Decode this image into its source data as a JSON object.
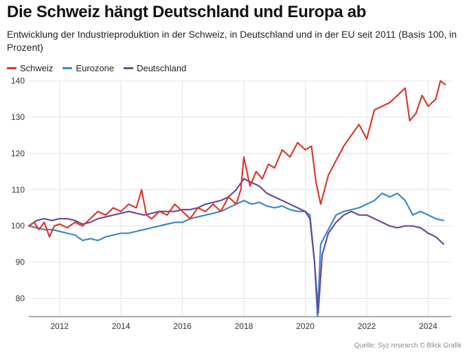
{
  "title": "Die Schweiz hängt Deutschland und Europa ab",
  "subtitle": "Entwicklung der Industrieproduktion in der Schweiz, in Deutschland und in der EU seit 2011 (Basis 100, in Prozent)",
  "source": "Quelle: Syz research © Blick Grafik",
  "chart_data": {
    "type": "line",
    "title": "Die Schweiz hängt Deutschland und Europa ab",
    "xlabel": "",
    "ylabel": "",
    "xlim": [
      2011,
      2024.75
    ],
    "ylim": [
      75,
      140
    ],
    "yticks": [
      80,
      90,
      100,
      110,
      120,
      130,
      140
    ],
    "xticks": [
      2012,
      2014,
      2016,
      2018,
      2020,
      2022,
      2024
    ],
    "grid": true,
    "legend": "top-left",
    "series": [
      {
        "name": "Schweiz",
        "color": "#d93a2b",
        "points": [
          [
            2011.0,
            100
          ],
          [
            2011.17,
            101
          ],
          [
            2011.33,
            99
          ],
          [
            2011.5,
            101
          ],
          [
            2011.67,
            97
          ],
          [
            2011.83,
            100
          ],
          [
            2012.0,
            100.5
          ],
          [
            2012.25,
            99.5
          ],
          [
            2012.5,
            101
          ],
          [
            2012.75,
            100
          ],
          [
            2013.0,
            102
          ],
          [
            2013.25,
            104
          ],
          [
            2013.5,
            103
          ],
          [
            2013.75,
            105
          ],
          [
            2014.0,
            104
          ],
          [
            2014.25,
            106
          ],
          [
            2014.5,
            105
          ],
          [
            2014.67,
            110
          ],
          [
            2014.83,
            103
          ],
          [
            2015.0,
            102
          ],
          [
            2015.25,
            104
          ],
          [
            2015.5,
            103
          ],
          [
            2015.75,
            106
          ],
          [
            2016.0,
            104
          ],
          [
            2016.25,
            102
          ],
          [
            2016.5,
            105
          ],
          [
            2016.75,
            104
          ],
          [
            2017.0,
            106
          ],
          [
            2017.25,
            104
          ],
          [
            2017.5,
            108
          ],
          [
            2017.75,
            106
          ],
          [
            2017.9,
            110
          ],
          [
            2018.0,
            119
          ],
          [
            2018.2,
            111
          ],
          [
            2018.4,
            115
          ],
          [
            2018.6,
            113
          ],
          [
            2018.8,
            117
          ],
          [
            2019.0,
            116
          ],
          [
            2019.25,
            121
          ],
          [
            2019.5,
            119
          ],
          [
            2019.75,
            123
          ],
          [
            2020.0,
            121
          ],
          [
            2020.2,
            122
          ],
          [
            2020.35,
            112
          ],
          [
            2020.5,
            106
          ],
          [
            2020.75,
            114
          ],
          [
            2021.0,
            118
          ],
          [
            2021.25,
            122
          ],
          [
            2021.5,
            125
          ],
          [
            2021.75,
            128
          ],
          [
            2022.0,
            124
          ],
          [
            2022.25,
            132
          ],
          [
            2022.5,
            133
          ],
          [
            2022.75,
            134
          ],
          [
            2023.0,
            136
          ],
          [
            2023.25,
            138
          ],
          [
            2023.4,
            129
          ],
          [
            2023.6,
            131
          ],
          [
            2023.8,
            136
          ],
          [
            2024.0,
            133
          ],
          [
            2024.25,
            135
          ],
          [
            2024.4,
            140
          ],
          [
            2024.55,
            139
          ]
        ]
      },
      {
        "name": "Eurozone",
        "color": "#3a89c4",
        "points": [
          [
            2011.0,
            100
          ],
          [
            2011.25,
            99.5
          ],
          [
            2011.5,
            99
          ],
          [
            2011.75,
            99
          ],
          [
            2012.0,
            98.5
          ],
          [
            2012.25,
            98
          ],
          [
            2012.5,
            97.5
          ],
          [
            2012.75,
            96
          ],
          [
            2013.0,
            96.5
          ],
          [
            2013.25,
            96
          ],
          [
            2013.5,
            97
          ],
          [
            2013.75,
            97.5
          ],
          [
            2014.0,
            98
          ],
          [
            2014.25,
            98
          ],
          [
            2014.5,
            98.5
          ],
          [
            2014.75,
            99
          ],
          [
            2015.0,
            99.5
          ],
          [
            2015.25,
            100
          ],
          [
            2015.5,
            100.5
          ],
          [
            2015.75,
            101
          ],
          [
            2016.0,
            101
          ],
          [
            2016.25,
            102
          ],
          [
            2016.5,
            102.5
          ],
          [
            2016.75,
            103
          ],
          [
            2017.0,
            103.5
          ],
          [
            2017.25,
            104
          ],
          [
            2017.5,
            105
          ],
          [
            2017.75,
            106
          ],
          [
            2018.0,
            107
          ],
          [
            2018.25,
            106
          ],
          [
            2018.5,
            106.5
          ],
          [
            2018.75,
            105.5
          ],
          [
            2019.0,
            105
          ],
          [
            2019.25,
            105.5
          ],
          [
            2019.5,
            104.5
          ],
          [
            2019.75,
            104
          ],
          [
            2020.0,
            104
          ],
          [
            2020.15,
            103
          ],
          [
            2020.3,
            90
          ],
          [
            2020.4,
            75
          ],
          [
            2020.5,
            95
          ],
          [
            2020.75,
            99
          ],
          [
            2021.0,
            103
          ],
          [
            2021.25,
            104
          ],
          [
            2021.5,
            104.5
          ],
          [
            2021.75,
            105
          ],
          [
            2022.0,
            106
          ],
          [
            2022.25,
            107
          ],
          [
            2022.5,
            109
          ],
          [
            2022.75,
            108
          ],
          [
            2023.0,
            109
          ],
          [
            2023.25,
            107
          ],
          [
            2023.5,
            103
          ],
          [
            2023.75,
            104
          ],
          [
            2024.0,
            103
          ],
          [
            2024.25,
            102
          ],
          [
            2024.5,
            101.5
          ]
        ]
      },
      {
        "name": "Deutschland",
        "color": "#6a4a9c",
        "points": [
          [
            2011.0,
            100
          ],
          [
            2011.25,
            101.5
          ],
          [
            2011.5,
            102
          ],
          [
            2011.75,
            101.5
          ],
          [
            2012.0,
            102
          ],
          [
            2012.25,
            102
          ],
          [
            2012.5,
            101.5
          ],
          [
            2012.75,
            100.5
          ],
          [
            2013.0,
            101
          ],
          [
            2013.25,
            102
          ],
          [
            2013.5,
            102.5
          ],
          [
            2013.75,
            103
          ],
          [
            2014.0,
            103.5
          ],
          [
            2014.25,
            104
          ],
          [
            2014.5,
            103.5
          ],
          [
            2014.75,
            103
          ],
          [
            2015.0,
            103.5
          ],
          [
            2015.25,
            104
          ],
          [
            2015.5,
            104
          ],
          [
            2015.75,
            104
          ],
          [
            2016.0,
            104.5
          ],
          [
            2016.25,
            104.5
          ],
          [
            2016.5,
            105
          ],
          [
            2016.75,
            106
          ],
          [
            2017.0,
            106.5
          ],
          [
            2017.25,
            107
          ],
          [
            2017.5,
            108
          ],
          [
            2017.75,
            110
          ],
          [
            2018.0,
            113
          ],
          [
            2018.25,
            112
          ],
          [
            2018.5,
            111
          ],
          [
            2018.75,
            109
          ],
          [
            2019.0,
            108
          ],
          [
            2019.25,
            107
          ],
          [
            2019.5,
            106
          ],
          [
            2019.75,
            105
          ],
          [
            2020.0,
            104
          ],
          [
            2020.15,
            102
          ],
          [
            2020.3,
            90
          ],
          [
            2020.42,
            76
          ],
          [
            2020.55,
            92
          ],
          [
            2020.75,
            98
          ],
          [
            2021.0,
            101
          ],
          [
            2021.25,
            103
          ],
          [
            2021.5,
            104
          ],
          [
            2021.75,
            103
          ],
          [
            2022.0,
            103
          ],
          [
            2022.25,
            102
          ],
          [
            2022.5,
            101
          ],
          [
            2022.75,
            100
          ],
          [
            2023.0,
            99.5
          ],
          [
            2023.25,
            100
          ],
          [
            2023.5,
            100
          ],
          [
            2023.75,
            99.5
          ],
          [
            2024.0,
            98
          ],
          [
            2024.25,
            97
          ],
          [
            2024.5,
            95
          ]
        ]
      }
    ]
  }
}
